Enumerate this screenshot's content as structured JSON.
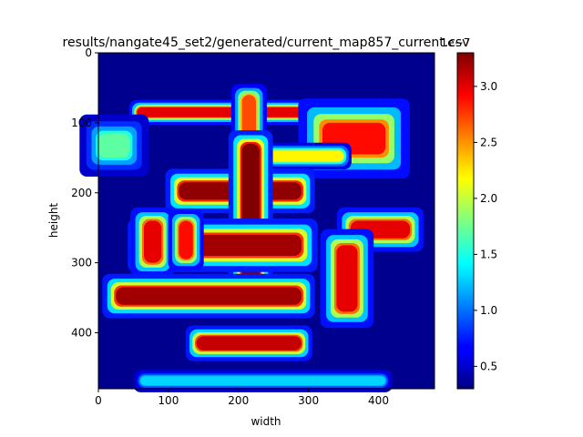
{
  "chart_data": {
    "type": "heatmap",
    "title": "results/nangate45_set2/generated/current_map857_current.csv",
    "xlabel": "width",
    "ylabel": "height",
    "xlim": [
      0,
      480
    ],
    "ylim": [
      480,
      0
    ],
    "x_ticks": [
      "0",
      "100",
      "200",
      "300",
      "400"
    ],
    "y_ticks": [
      "0",
      "100",
      "200",
      "300",
      "400"
    ],
    "colorbar": {
      "colormap": "jet",
      "range": [
        3e-08,
        3.3e-07
      ],
      "ticks": [
        "0.5",
        "1.0",
        "1.5",
        "2.0",
        "2.5",
        "3.0"
      ],
      "offset_text": "1e−7"
    },
    "background_level": 3.2e-08,
    "features": [
      {
        "kind": "h-band",
        "x": [
          55,
          410
        ],
        "y": [
          78,
          92
        ],
        "peak": 3e-07
      },
      {
        "kind": "h-band",
        "x": [
          320,
          410
        ],
        "y": [
          100,
          145
        ],
        "peak": 2.9e-07
      },
      {
        "kind": "v-band",
        "x": [
          205,
          225
        ],
        "y": [
          60,
          125
        ],
        "peak": 2.7e-07
      },
      {
        "kind": "h-band",
        "x": [
          0,
          45
        ],
        "y": [
          115,
          150
        ],
        "peak": 1.7e-07
      },
      {
        "kind": "h-band",
        "x": [
          230,
          350
        ],
        "y": [
          140,
          155
        ],
        "peak": 2.2e-07
      },
      {
        "kind": "h-band",
        "x": [
          115,
          290
        ],
        "y": [
          185,
          210
        ],
        "peak": 3.25e-07
      },
      {
        "kind": "v-band",
        "x": [
          205,
          230
        ],
        "y": [
          130,
          325
        ],
        "peak": 3.3e-07
      },
      {
        "kind": "h-band",
        "x": [
          65,
          290
        ],
        "y": [
          260,
          290
        ],
        "peak": 3.2e-07
      },
      {
        "kind": "v-band",
        "x": [
          65,
          90
        ],
        "y": [
          240,
          300
        ],
        "peak": 3e-07
      },
      {
        "kind": "v-band",
        "x": [
          115,
          135
        ],
        "y": [
          240,
          295
        ],
        "peak": 2.9e-07
      },
      {
        "kind": "h-band",
        "x": [
          360,
          445
        ],
        "y": [
          240,
          265
        ],
        "peak": 3e-07
      },
      {
        "kind": "h-band",
        "x": [
          25,
          290
        ],
        "y": [
          335,
          360
        ],
        "peak": 3.2e-07
      },
      {
        "kind": "v-band",
        "x": [
          340,
          370
        ],
        "y": [
          275,
          370
        ],
        "peak": 3e-07
      },
      {
        "kind": "h-band",
        "x": [
          140,
          290
        ],
        "y": [
          405,
          425
        ],
        "peak": 3.1e-07
      },
      {
        "kind": "h-band",
        "x": [
          60,
          410
        ],
        "y": [
          462,
          475
        ],
        "peak": 1.3e-07
      }
    ]
  }
}
